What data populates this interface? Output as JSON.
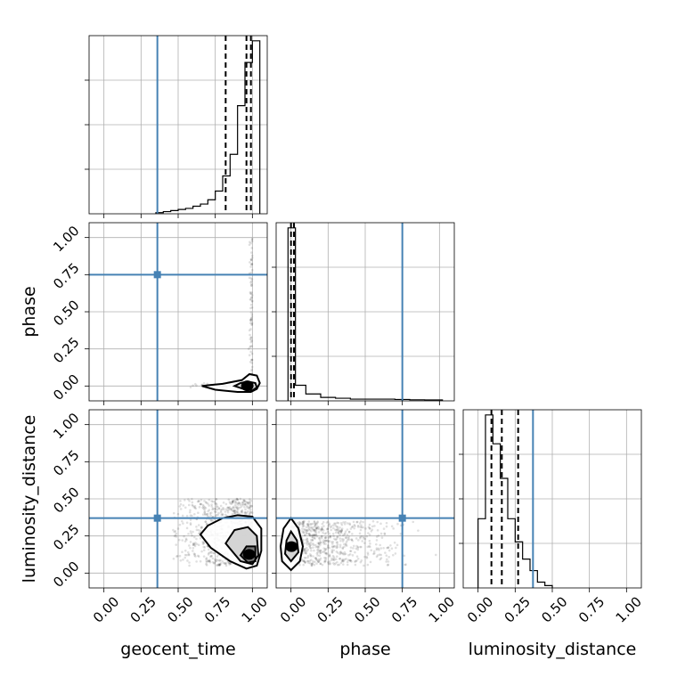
{
  "chart_data": {
    "type": "corner",
    "parameters": [
      "geocent_time",
      "phase",
      "luminosity_distance"
    ],
    "tick_labels": [
      "0.00",
      "0.25",
      "0.50",
      "0.75",
      "1.00"
    ],
    "range": [
      -0.1,
      1.1
    ],
    "truths": {
      "geocent_time": 0.36,
      "phase": 0.75,
      "luminosity_distance": 0.37
    },
    "truth_color": "#4682b4",
    "grid": true,
    "histograms": {
      "geocent_time": {
        "edges": [
          0.35,
          0.4,
          0.45,
          0.5,
          0.55,
          0.6,
          0.65,
          0.7,
          0.75,
          0.8,
          0.85,
          0.9,
          0.95,
          1.0,
          1.05
        ],
        "counts": [
          1,
          2,
          3,
          4,
          5,
          7,
          9,
          13,
          21,
          35,
          55,
          100,
          140,
          160
        ],
        "quantiles": [
          0.82,
          0.96,
          0.99
        ]
      },
      "phase": {
        "edges": [
          -0.02,
          0.03,
          0.1,
          0.2,
          0.3,
          0.4,
          0.5,
          0.6,
          0.7,
          0.8,
          0.9,
          1.02
        ],
        "counts": [
          100,
          9,
          4,
          2,
          1.5,
          1,
          1,
          1,
          0.8,
          0.6,
          0.5
        ],
        "quantiles": [
          0.0,
          0.02
        ]
      },
      "luminosity_distance": {
        "edges": [
          0.0,
          0.05,
          0.1,
          0.15,
          0.2,
          0.25,
          0.3,
          0.35,
          0.4,
          0.45,
          0.5
        ],
        "counts": [
          60,
          150,
          125,
          95,
          60,
          40,
          25,
          15,
          5,
          2
        ],
        "quantiles": [
          0.09,
          0.16,
          0.27
        ]
      }
    },
    "scatter_blobs": {
      "geocent_time_vs_phase": [
        {
          "x0": 0.5,
          "x1": 1.0,
          "y0": -0.01,
          "y1": 0.02,
          "n": 110,
          "bias": 2.5
        },
        {
          "x0": 0.97,
          "x1": 1.0,
          "y0": 0.02,
          "y1": 1.0,
          "n": 90,
          "bias": 3.2
        }
      ],
      "geocent_time_vs_luminosity_distance": [
        {
          "x0": 0.45,
          "x1": 1.0,
          "y0": 0.05,
          "y1": 0.5,
          "n": 750,
          "bias": 1.8
        }
      ],
      "phase_vs_luminosity_distance": [
        {
          "x0": 0.0,
          "x1": 1.0,
          "y0": 0.05,
          "y1": 0.35,
          "n": 700,
          "bias": 3.0
        }
      ]
    },
    "contours": {
      "geocent_time_vs_phase": [
        [
          [
            0.66,
            0.0
          ],
          [
            0.75,
            -0.025
          ],
          [
            0.9,
            -0.04
          ],
          [
            0.99,
            -0.04
          ],
          [
            1.03,
            -0.02
          ],
          [
            1.05,
            0.02
          ],
          [
            1.03,
            0.07
          ],
          [
            0.98,
            0.08
          ],
          [
            0.93,
            0.04
          ],
          [
            0.8,
            0.015
          ],
          [
            0.7,
            0.005
          ]
        ],
        [
          [
            0.88,
            0.0
          ],
          [
            0.94,
            -0.02
          ],
          [
            1.0,
            -0.03
          ],
          [
            1.03,
            -0.01
          ],
          [
            1.02,
            0.02
          ],
          [
            0.97,
            0.03
          ],
          [
            0.92,
            0.02
          ]
        ]
      ],
      "geocent_time_vs_luminosity_distance": [
        [
          [
            0.65,
            0.26
          ],
          [
            0.7,
            0.32
          ],
          [
            0.8,
            0.37
          ],
          [
            0.9,
            0.39
          ],
          [
            1.0,
            0.38
          ],
          [
            1.06,
            0.3
          ],
          [
            1.06,
            0.15
          ],
          [
            1.03,
            0.05
          ],
          [
            0.96,
            0.03
          ],
          [
            0.85,
            0.08
          ],
          [
            0.72,
            0.17
          ]
        ],
        [
          [
            0.82,
            0.2
          ],
          [
            0.88,
            0.29
          ],
          [
            0.97,
            0.31
          ],
          [
            1.03,
            0.25
          ],
          [
            1.04,
            0.12
          ],
          [
            1.0,
            0.06
          ],
          [
            0.92,
            0.08
          ]
        ],
        [
          [
            0.92,
            0.12
          ],
          [
            0.96,
            0.18
          ],
          [
            1.02,
            0.18
          ],
          [
            1.02,
            0.08
          ],
          [
            0.97,
            0.07
          ]
        ]
      ],
      "phase_vs_luminosity_distance": [
        [
          [
            -0.05,
            0.3
          ],
          [
            0.0,
            0.37
          ],
          [
            0.05,
            0.3
          ],
          [
            0.08,
            0.18
          ],
          [
            0.06,
            0.08
          ],
          [
            0.0,
            0.02
          ],
          [
            -0.06,
            0.08
          ],
          [
            -0.07,
            0.18
          ]
        ],
        [
          [
            -0.03,
            0.22
          ],
          [
            0.0,
            0.28
          ],
          [
            0.04,
            0.22
          ],
          [
            0.05,
            0.14
          ],
          [
            0.0,
            0.08
          ],
          [
            -0.04,
            0.13
          ]
        ]
      ]
    },
    "truth_markers": [
      {
        "panel": "geocent_time_vs_phase",
        "x": 0.36,
        "y": 0.75
      },
      {
        "panel": "geocent_time_vs_luminosity_distance",
        "x": 0.36,
        "y": 0.37
      },
      {
        "panel": "phase_vs_luminosity_distance",
        "x": 0.75,
        "y": 0.37
      }
    ]
  }
}
